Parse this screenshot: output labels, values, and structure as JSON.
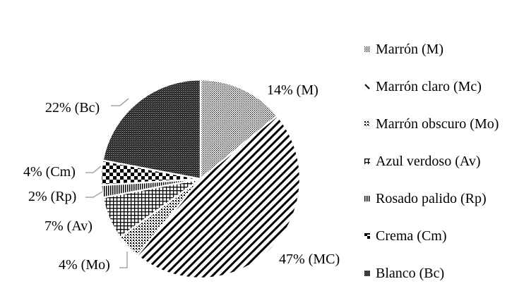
{
  "chart_data": {
    "type": "pie",
    "title": "",
    "start_angle_deg": 90,
    "direction": "clockwise",
    "categories": [
      "Marrón (M)",
      "Marrón claro (Mc)",
      "Marrón obscuro (Mo)",
      "Azul verdoso (Av)",
      "Rosado palido (Rp)",
      "Crema (Cm)",
      "Blanco (Bc)"
    ],
    "codes": [
      "M",
      "Mc",
      "Mo",
      "Av",
      "Rp",
      "Cm",
      "Bc"
    ],
    "values": [
      14,
      47,
      4,
      7,
      2,
      4,
      22
    ],
    "unit": "%",
    "data_labels": [
      "14% (M)",
      "47% (MC)",
      "4% (Mo)",
      "7% (Av)",
      "2% (Rp)",
      "4% (Cm)",
      "22% (Bc)"
    ],
    "fill_patterns": [
      "fine-dots",
      "wide-diagonal-stripes",
      "sparse-dots",
      "grid",
      "vertical-stripes",
      "checkerboard",
      "dense-crosshatch"
    ],
    "legend_position": "right",
    "colors": {
      "ink": "#000000",
      "background": "#ffffff",
      "leader_line": "#a6a6a6"
    }
  },
  "legend": {
    "items": [
      {
        "label": "Marrón (M)",
        "pattern": "fine-dots"
      },
      {
        "label": "Marrón claro (Mc)",
        "pattern": "wide-diagonal-stripes"
      },
      {
        "label": "Marrón obscuro (Mo)",
        "pattern": "sparse-dots"
      },
      {
        "label": "Azul verdoso (Av)",
        "pattern": "grid"
      },
      {
        "label": "Rosado palido (Rp)",
        "pattern": "vertical-stripes"
      },
      {
        "label": "Crema (Cm)",
        "pattern": "checkerboard"
      },
      {
        "label": "Blanco (Bc)",
        "pattern": "dense-crosshatch"
      }
    ]
  },
  "labels": {
    "m": "14% (M)",
    "mc": "47% (MC)",
    "mo": "4% (Mo)",
    "av": "7% (Av)",
    "rp": "2% (Rp)",
    "cm": "4% (Cm)",
    "bc": "22% (Bc)"
  }
}
